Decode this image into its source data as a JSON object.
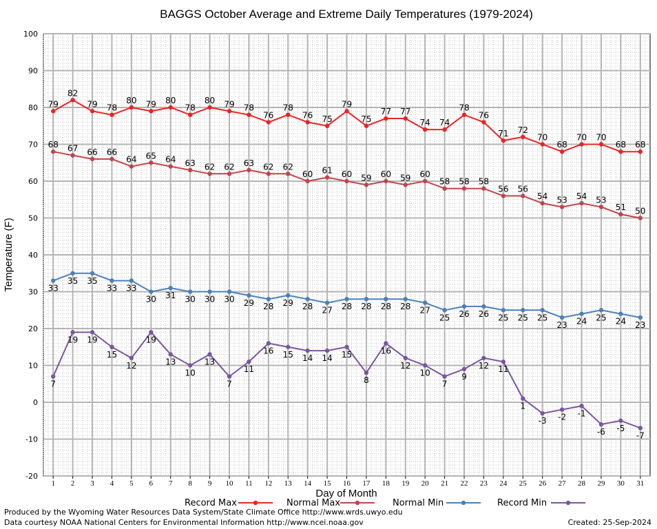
{
  "chart_data": {
    "type": "line",
    "title": "BAGGS October Average and Extreme Daily Temperatures (1979-2024)",
    "xlabel": "Day of Month",
    "ylabel": "Temperature (F)",
    "xlim": [
      0.5,
      31.5
    ],
    "ylim": [
      -20,
      100
    ],
    "y_ticks": [
      -20,
      -10,
      0,
      10,
      20,
      30,
      40,
      50,
      60,
      70,
      80,
      90,
      100
    ],
    "x": [
      1,
      2,
      3,
      4,
      5,
      6,
      7,
      8,
      9,
      10,
      11,
      12,
      13,
      14,
      15,
      16,
      17,
      18,
      19,
      20,
      21,
      22,
      23,
      24,
      25,
      26,
      27,
      28,
      29,
      30,
      31
    ],
    "grid": true,
    "legend_position": "bottom",
    "series": [
      {
        "name": "Record Max",
        "color": "#ee2222",
        "values": [
          79,
          82,
          79,
          78,
          80,
          79,
          80,
          78,
          80,
          79,
          78,
          76,
          78,
          76,
          75,
          79,
          75,
          77,
          77,
          74,
          74,
          78,
          76,
          71,
          72,
          70,
          68,
          70,
          70,
          68,
          68
        ]
      },
      {
        "name": "Normal Max",
        "color": "#c0454a",
        "values": [
          68,
          67,
          66,
          66,
          64,
          65,
          64,
          63,
          62,
          62,
          63,
          62,
          62,
          60,
          61,
          60,
          59,
          60,
          59,
          60,
          58,
          58,
          58,
          56,
          56,
          54,
          53,
          54,
          53,
          51,
          50
        ]
      },
      {
        "name": "Normal Min",
        "color": "#4a80b8",
        "values": [
          33,
          35,
          35,
          33,
          33,
          30,
          31,
          30,
          30,
          30,
          29,
          28,
          29,
          28,
          27,
          28,
          28,
          28,
          28,
          27,
          25,
          26,
          26,
          25,
          25,
          25,
          23,
          24,
          25,
          24,
          23
        ]
      },
      {
        "name": "Record Min",
        "color": "#7a55a0",
        "values": [
          7,
          19,
          19,
          15,
          12,
          19,
          13,
          10,
          13,
          7,
          11,
          16,
          15,
          14,
          14,
          15,
          8,
          16,
          12,
          10,
          7,
          9,
          12,
          11,
          1,
          -3,
          -2,
          -1,
          -6,
          -5,
          -7
        ]
      }
    ]
  },
  "footer": {
    "line1": "Produced by the Wyoming Water Resources Data System/State Climate Office http://www.wrds.uwyo.edu",
    "line2": "Data courtesy NOAA National Centers for Environmental Information http://www.ncei.noaa.gov",
    "created": "Created:  25-Sep-2024"
  }
}
